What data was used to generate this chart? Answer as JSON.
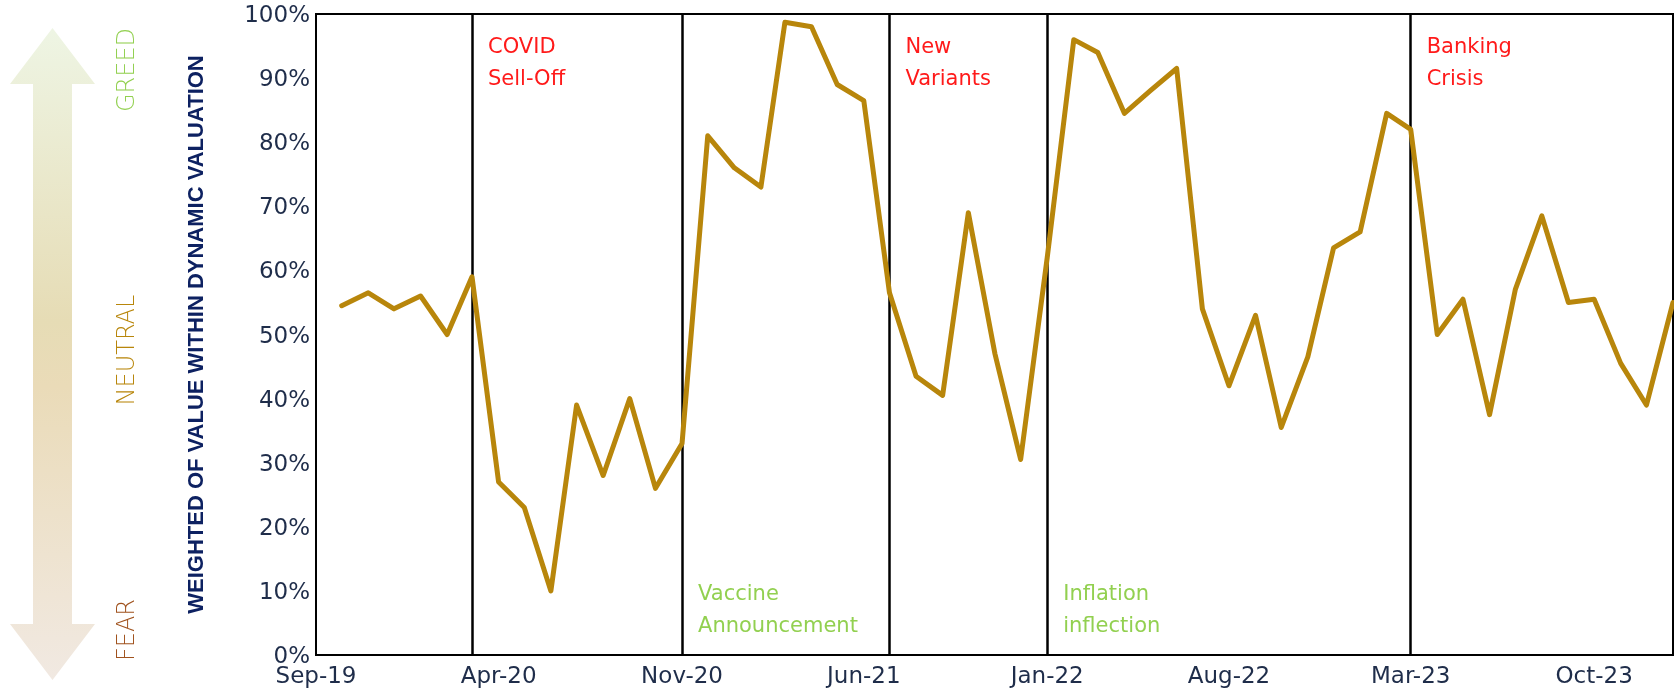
{
  "chart_data": {
    "type": "line",
    "ylabel": "WEIGHTED OF VALUE WITHIN DYNAMIC VALUATION",
    "x": [
      "2019-10",
      "2019-11",
      "2019-12",
      "2020-01",
      "2020-02",
      "2020-03",
      "2020-04",
      "2020-05",
      "2020-06",
      "2020-07",
      "2020-08",
      "2020-09",
      "2020-10",
      "2020-11",
      "2020-12",
      "2021-01",
      "2021-02",
      "2021-03",
      "2021-04",
      "2021-05",
      "2021-06",
      "2021-07",
      "2021-08",
      "2021-09",
      "2021-10",
      "2021-11",
      "2021-12",
      "2022-01",
      "2022-02",
      "2022-03",
      "2022-04",
      "2022-05",
      "2022-06",
      "2022-07",
      "2022-08",
      "2022-09",
      "2022-10",
      "2022-11",
      "2022-12",
      "2023-01",
      "2023-02",
      "2023-03",
      "2023-04",
      "2023-05",
      "2023-06",
      "2023-07",
      "2023-08",
      "2023-09",
      "2023-10",
      "2023-11",
      "2023-12",
      "2024-01"
    ],
    "series": [
      {
        "color": "#b8860b",
        "values": [
          54.5,
          56.5,
          54,
          56,
          50,
          59,
          27,
          23,
          10,
          39,
          28,
          40,
          26,
          33,
          81,
          76,
          73,
          98.7,
          98,
          89,
          86.5,
          56.5,
          43.5,
          40.5,
          69,
          47,
          30.5,
          62,
          96,
          94,
          84.5,
          88,
          91.5,
          54,
          42,
          53,
          35.5,
          46.5,
          63.5,
          66,
          84.5,
          82,
          50,
          55.5,
          37.5,
          57,
          68.5,
          55,
          55.5,
          45.5,
          39,
          55
        ]
      }
    ],
    "xlim": [
      "2019-09",
      "2024-01"
    ],
    "xticks": [
      {
        "value": "2019-09",
        "label": "Sep-19"
      },
      {
        "value": "2020-04",
        "label": "Apr-20"
      },
      {
        "value": "2020-11",
        "label": "Nov-20"
      },
      {
        "value": "2021-06",
        "label": "Jun-21"
      },
      {
        "value": "2022-01",
        "label": "Jan-22"
      },
      {
        "value": "2022-08",
        "label": "Aug-22"
      },
      {
        "value": "2023-03",
        "label": "Mar-23"
      },
      {
        "value": "2023-10",
        "label": "Oct-23"
      }
    ],
    "ylim": [
      0,
      100
    ],
    "yticks": [
      {
        "value": 0,
        "label": "0%"
      },
      {
        "value": 10,
        "label": "10%"
      },
      {
        "value": 20,
        "label": "20%"
      },
      {
        "value": 30,
        "label": "30%"
      },
      {
        "value": 40,
        "label": "40%"
      },
      {
        "value": 50,
        "label": "50%"
      },
      {
        "value": 60,
        "label": "60%"
      },
      {
        "value": 70,
        "label": "70%"
      },
      {
        "value": 80,
        "label": "80%"
      },
      {
        "value": 90,
        "label": "90%"
      },
      {
        "value": 100,
        "label": "100%"
      }
    ],
    "ref_lines": [
      {
        "axis": "x",
        "value": "2020-03",
        "label": "COVID\nSell-Off",
        "color": "#000000"
      },
      {
        "axis": "x",
        "value": "2020-11",
        "label": "Vaccine\nAnnouncement",
        "color": "#000000"
      },
      {
        "axis": "x",
        "value": "2021-07",
        "label": "New\nVariants",
        "color": "#000000"
      },
      {
        "axis": "x",
        "value": "2022-01",
        "label": "Inflation\ninflection",
        "color": "#000000"
      },
      {
        "axis": "x",
        "value": "2023-03",
        "label": "Banking\nCrisis",
        "color": "#000000"
      }
    ],
    "annotations": [
      "GREED",
      "NEUTRAL",
      "FEAR"
    ],
    "grid": false,
    "marker": "none",
    "line_style": "solid"
  }
}
